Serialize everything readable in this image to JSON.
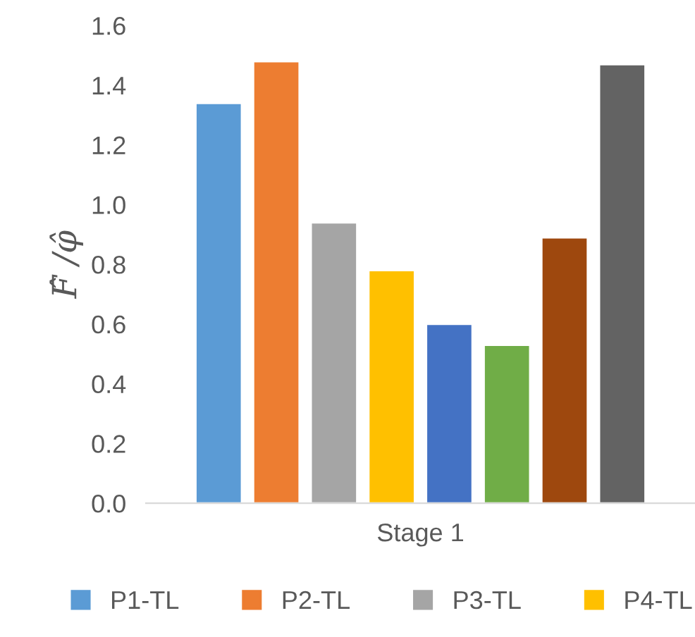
{
  "chart_data": {
    "type": "bar",
    "ylabel": "F̂ /φ̂",
    "categories": [
      "Stage 1"
    ],
    "series": [
      {
        "name": "P1-TL",
        "color": "#5b9bd5",
        "values": [
          1.34
        ]
      },
      {
        "name": "P2-TL",
        "color": "#ed7d31",
        "values": [
          1.48
        ]
      },
      {
        "name": "P3-TL",
        "color": "#a5a5a5",
        "values": [
          0.94
        ]
      },
      {
        "name": "P4-TL",
        "color": "#ffc000",
        "values": [
          0.78
        ]
      },
      {
        "color": "#4472c4",
        "values": [
          0.6
        ]
      },
      {
        "color": "#70ad47",
        "values": [
          0.53
        ]
      },
      {
        "color": "#9e480e",
        "values": [
          0.89
        ]
      },
      {
        "color": "#636363",
        "values": [
          1.47
        ]
      }
    ],
    "ylim": [
      0,
      1.6
    ],
    "yticks": [
      {
        "value": 0,
        "label": "0.0"
      },
      {
        "value": 0.2,
        "label": "0.2"
      },
      {
        "value": 0.4,
        "label": "0.4"
      },
      {
        "value": 0.6,
        "label": "0.6"
      },
      {
        "value": 0.8,
        "label": "0.8"
      },
      {
        "value": 1.0,
        "label": "1.0"
      },
      {
        "value": 1.2,
        "label": "1.2"
      },
      {
        "value": 1.4,
        "label": "1.4"
      },
      {
        "value": 1.6,
        "label": "1.6"
      }
    ],
    "grid": false,
    "legend": "bottom"
  }
}
